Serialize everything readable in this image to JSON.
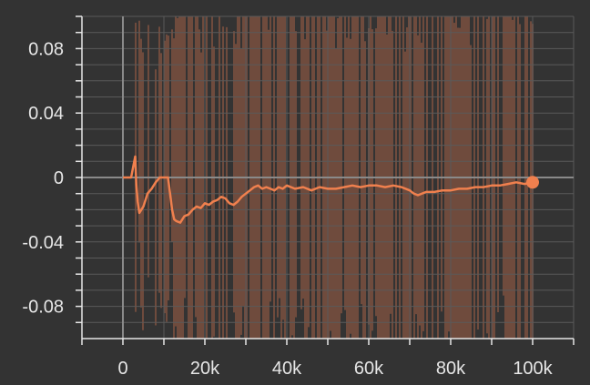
{
  "chart_data": {
    "type": "line",
    "title": "",
    "xlabel": "",
    "ylabel": "",
    "xlim": [
      -10000,
      110000
    ],
    "ylim": [
      -0.1,
      0.1
    ],
    "x_ticks": [
      0,
      20000,
      40000,
      60000,
      80000,
      100000
    ],
    "x_tick_labels": [
      "0",
      "20k",
      "40k",
      "60k",
      "80k",
      "100k"
    ],
    "y_ticks": [
      0.08,
      0.04,
      0,
      -0.04,
      -0.08
    ],
    "y_tick_labels": [
      "0.08",
      "0.04",
      "0",
      "-0.04",
      "-0.08"
    ],
    "grid": true,
    "legend": "none",
    "colors": {
      "background": "#333333",
      "grid": "#5a5a5a",
      "axis": "#8a8a8a",
      "smoothed": "#f0804e",
      "raw": "#7a5040",
      "tick_text": "#e6e6e6"
    },
    "series": [
      {
        "role": "smoothed",
        "x": [
          0,
          2000,
          3000,
          3300,
          3600,
          4000,
          5000,
          6000,
          7000,
          8000,
          9000,
          10000,
          11000,
          11500,
          12000,
          12500,
          13000,
          14000,
          15000,
          16000,
          17000,
          18000,
          19000,
          20000,
          21000,
          22000,
          23000,
          24000,
          25000,
          26000,
          27000,
          28000,
          29000,
          30000,
          31000,
          32000,
          33000,
          34000,
          35000,
          36000,
          37000,
          38000,
          39000,
          40000,
          42000,
          44000,
          46000,
          48000,
          50000,
          52000,
          54000,
          56000,
          58000,
          60000,
          62000,
          64000,
          66000,
          68000,
          70000,
          71000,
          72000,
          74000,
          76000,
          78000,
          80000,
          82000,
          84000,
          86000,
          88000,
          90000,
          92000,
          94000,
          96000,
          98000,
          100000
        ],
        "y": [
          0,
          0,
          0.013,
          -0.005,
          -0.015,
          -0.022,
          -0.018,
          -0.01,
          -0.007,
          -0.003,
          0,
          0,
          0,
          -0.01,
          -0.02,
          -0.026,
          -0.027,
          -0.028,
          -0.024,
          -0.023,
          -0.02,
          -0.018,
          -0.019,
          -0.016,
          -0.017,
          -0.015,
          -0.014,
          -0.012,
          -0.013,
          -0.016,
          -0.017,
          -0.015,
          -0.012,
          -0.01,
          -0.008,
          -0.006,
          -0.005,
          -0.007,
          -0.006,
          -0.007,
          -0.008,
          -0.006,
          -0.007,
          -0.005,
          -0.007,
          -0.006,
          -0.008,
          -0.006,
          -0.007,
          -0.007,
          -0.006,
          -0.005,
          -0.006,
          -0.005,
          -0.005,
          -0.006,
          -0.005,
          -0.006,
          -0.008,
          -0.01,
          -0.011,
          -0.009,
          -0.009,
          -0.008,
          -0.008,
          -0.007,
          -0.007,
          -0.006,
          -0.006,
          -0.005,
          -0.005,
          -0.004,
          -0.003,
          -0.004,
          -0.003
        ]
      }
    ]
  }
}
